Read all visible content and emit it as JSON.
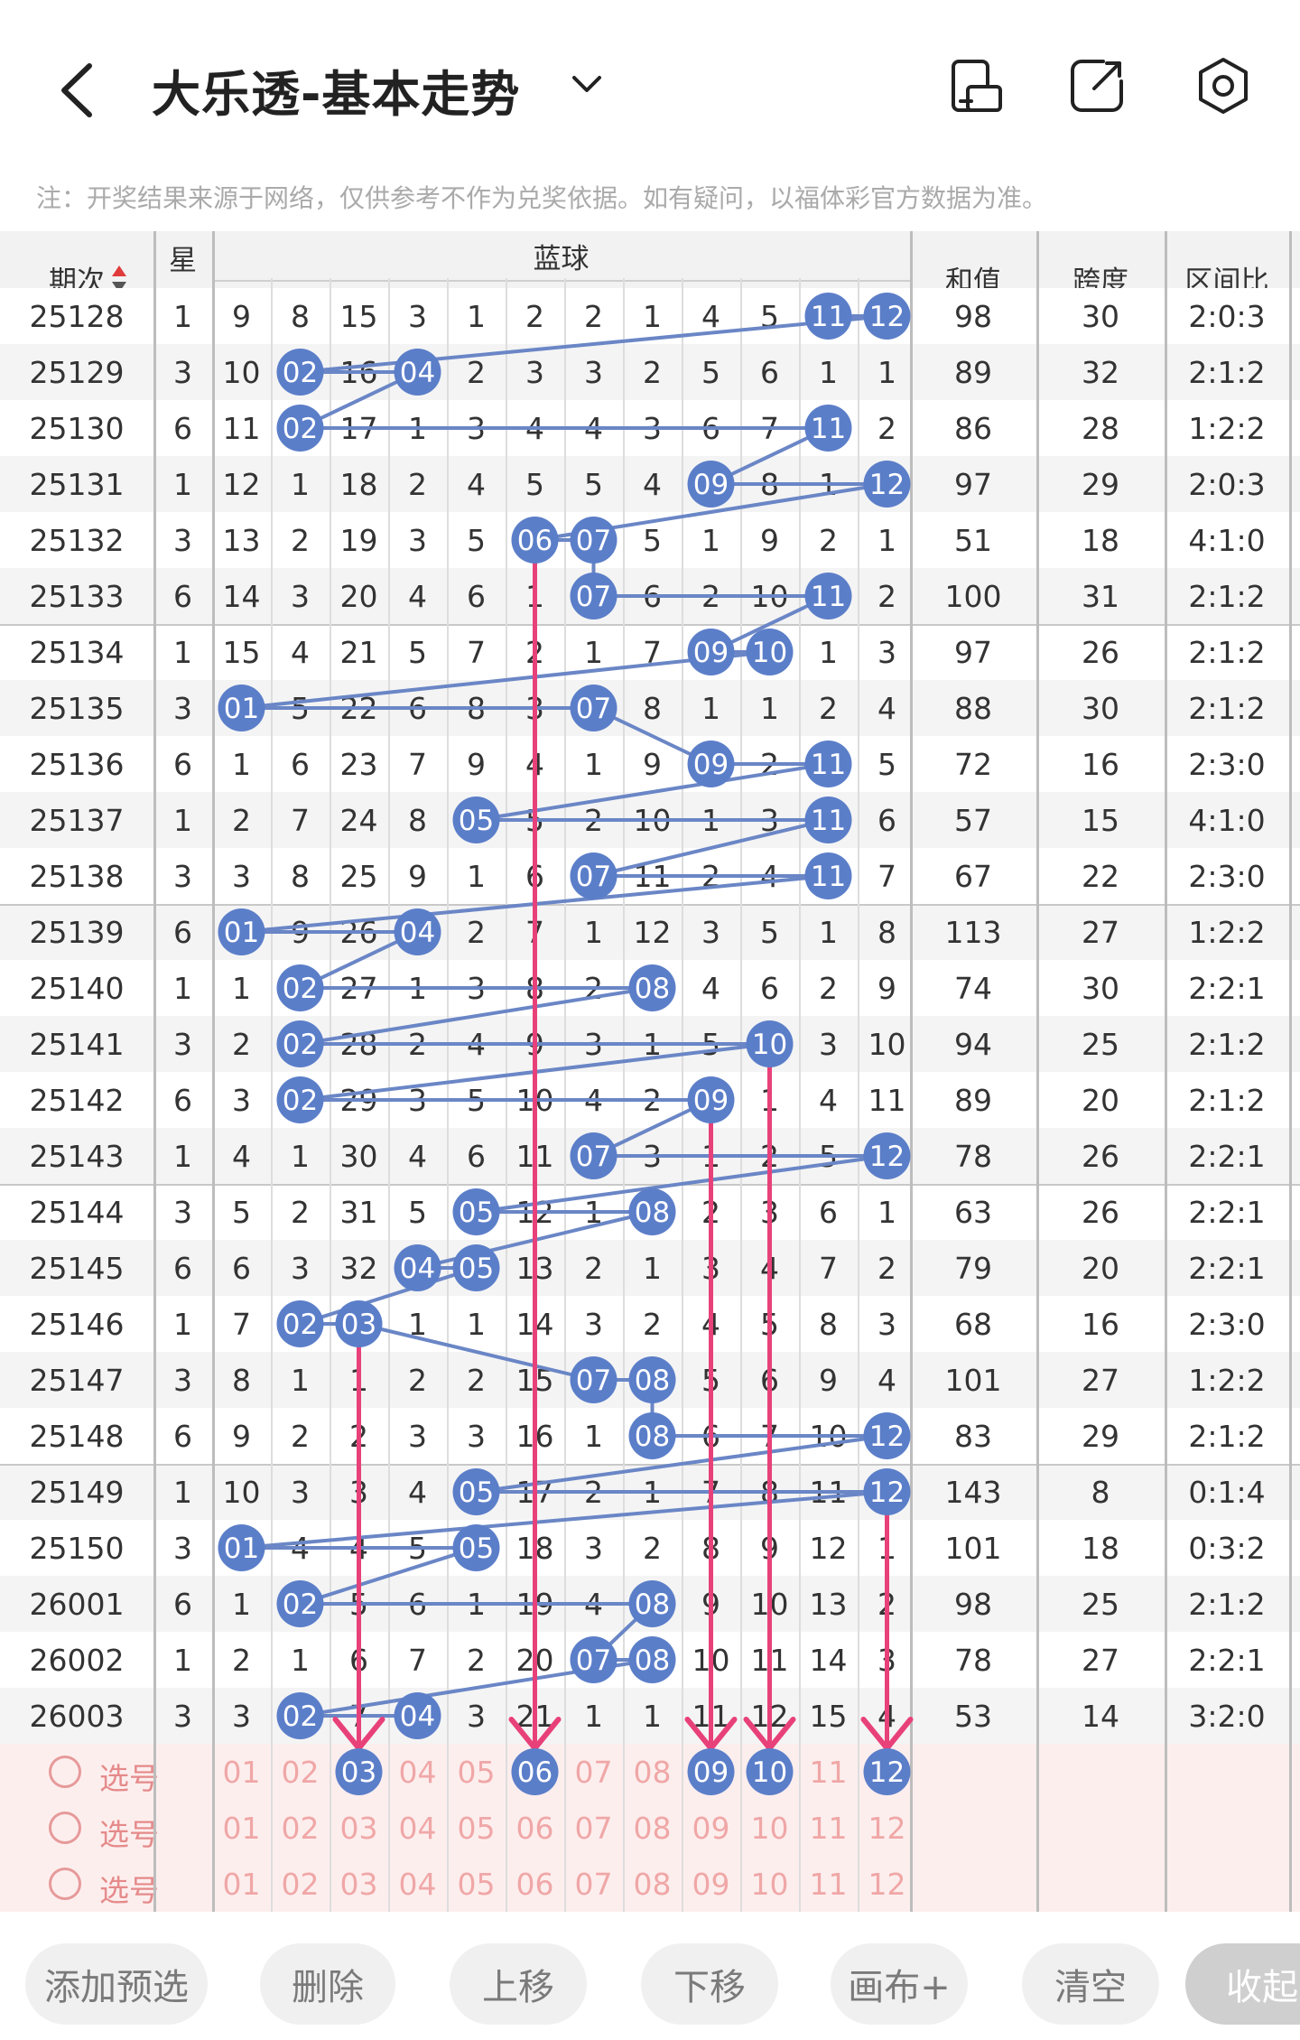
{
  "header": {
    "title": "大乐透-基本走势",
    "notice": "注：开奖结果来源于网络，仅供参考不作为兑奖依据。如有疑问，以福体彩官方数据为准。"
  },
  "table": {
    "col_issue": "期次",
    "col_week": [
      "星",
      "期"
    ],
    "col_blue": "蓝球",
    "col_sum": "和值",
    "col_span": "跨度",
    "col_zone": "区间比",
    "blue_numbers": [
      "01",
      "02",
      "03",
      "04",
      "05",
      "06",
      "07",
      "08",
      "09",
      "10",
      "11",
      "12"
    ],
    "partial_row": {
      "issue": "25128",
      "week": "1",
      "blue": [
        "9",
        "8",
        "15",
        "3",
        "1",
        "2",
        "2",
        "1",
        "4",
        "5",
        "11",
        "12"
      ],
      "balls": [
        11,
        12
      ],
      "sum": "98",
      "span": "30",
      "zone": "2:0:3"
    },
    "rows": [
      {
        "issue": "25129",
        "week": "3",
        "blue": [
          "10",
          "02",
          "16",
          "04",
          "2",
          "3",
          "3",
          "2",
          "5",
          "6",
          "1",
          "1"
        ],
        "balls": [
          2,
          4
        ],
        "sum": "89",
        "span": "32",
        "zone": "2:1:2"
      },
      {
        "issue": "25130",
        "week": "6",
        "blue": [
          "11",
          "02",
          "17",
          "1",
          "3",
          "4",
          "4",
          "3",
          "6",
          "7",
          "11",
          "2"
        ],
        "balls": [
          2,
          11
        ],
        "sum": "86",
        "span": "28",
        "zone": "1:2:2"
      },
      {
        "issue": "25131",
        "week": "1",
        "blue": [
          "12",
          "1",
          "18",
          "2",
          "4",
          "5",
          "5",
          "4",
          "09",
          "8",
          "1",
          "12"
        ],
        "balls": [
          9,
          12
        ],
        "sum": "97",
        "span": "29",
        "zone": "2:0:3"
      },
      {
        "issue": "25132",
        "week": "3",
        "blue": [
          "13",
          "2",
          "19",
          "3",
          "5",
          "06",
          "07",
          "5",
          "1",
          "9",
          "2",
          "1"
        ],
        "balls": [
          6,
          7
        ],
        "sum": "51",
        "span": "18",
        "zone": "4:1:0"
      },
      {
        "issue": "25133",
        "week": "6",
        "blue": [
          "14",
          "3",
          "20",
          "4",
          "6",
          "1",
          "07",
          "6",
          "2",
          "10",
          "11",
          "2"
        ],
        "balls": [
          7,
          11
        ],
        "sum": "100",
        "span": "31",
        "zone": "2:1:2"
      },
      {
        "issue": "25134",
        "week": "1",
        "blue": [
          "15",
          "4",
          "21",
          "5",
          "7",
          "2",
          "1",
          "7",
          "09",
          "10",
          "1",
          "3"
        ],
        "balls": [
          9,
          10
        ],
        "sum": "97",
        "span": "26",
        "zone": "2:1:2"
      },
      {
        "issue": "25135",
        "week": "3",
        "blue": [
          "01",
          "5",
          "22",
          "6",
          "8",
          "3",
          "07",
          "8",
          "1",
          "1",
          "2",
          "4"
        ],
        "balls": [
          1,
          7
        ],
        "sum": "88",
        "span": "30",
        "zone": "2:1:2"
      },
      {
        "issue": "25136",
        "week": "6",
        "blue": [
          "1",
          "6",
          "23",
          "7",
          "9",
          "4",
          "1",
          "9",
          "09",
          "2",
          "11",
          "5"
        ],
        "balls": [
          9,
          11
        ],
        "sum": "72",
        "span": "16",
        "zone": "2:3:0"
      },
      {
        "issue": "25137",
        "week": "1",
        "blue": [
          "2",
          "7",
          "24",
          "8",
          "05",
          "5",
          "2",
          "10",
          "1",
          "3",
          "11",
          "6"
        ],
        "balls": [
          5,
          11
        ],
        "sum": "57",
        "span": "15",
        "zone": "4:1:0"
      },
      {
        "issue": "25138",
        "week": "3",
        "blue": [
          "3",
          "8",
          "25",
          "9",
          "1",
          "6",
          "07",
          "11",
          "2",
          "4",
          "11",
          "7"
        ],
        "balls": [
          7,
          11
        ],
        "sum": "67",
        "span": "22",
        "zone": "2:3:0"
      },
      {
        "issue": "25139",
        "week": "6",
        "blue": [
          "01",
          "9",
          "26",
          "04",
          "2",
          "7",
          "1",
          "12",
          "3",
          "5",
          "1",
          "8"
        ],
        "balls": [
          1,
          4
        ],
        "sum": "113",
        "span": "27",
        "zone": "1:2:2"
      },
      {
        "issue": "25140",
        "week": "1",
        "blue": [
          "1",
          "02",
          "27",
          "1",
          "3",
          "8",
          "2",
          "08",
          "4",
          "6",
          "2",
          "9"
        ],
        "balls": [
          2,
          8
        ],
        "sum": "74",
        "span": "30",
        "zone": "2:2:1"
      },
      {
        "issue": "25141",
        "week": "3",
        "blue": [
          "2",
          "02",
          "28",
          "2",
          "4",
          "9",
          "3",
          "1",
          "5",
          "10",
          "3",
          "10"
        ],
        "balls": [
          2,
          10
        ],
        "sum": "94",
        "span": "25",
        "zone": "2:1:2"
      },
      {
        "issue": "25142",
        "week": "6",
        "blue": [
          "3",
          "02",
          "29",
          "3",
          "5",
          "10",
          "4",
          "2",
          "09",
          "1",
          "4",
          "11"
        ],
        "balls": [
          2,
          9
        ],
        "sum": "89",
        "span": "20",
        "zone": "2:1:2"
      },
      {
        "issue": "25143",
        "week": "1",
        "blue": [
          "4",
          "1",
          "30",
          "4",
          "6",
          "11",
          "07",
          "3",
          "1",
          "2",
          "5",
          "12"
        ],
        "balls": [
          7,
          12
        ],
        "sum": "78",
        "span": "26",
        "zone": "2:2:1"
      },
      {
        "issue": "25144",
        "week": "3",
        "blue": [
          "5",
          "2",
          "31",
          "5",
          "05",
          "12",
          "1",
          "08",
          "2",
          "3",
          "6",
          "1"
        ],
        "balls": [
          5,
          8
        ],
        "sum": "63",
        "span": "26",
        "zone": "2:2:1"
      },
      {
        "issue": "25145",
        "week": "6",
        "blue": [
          "6",
          "3",
          "32",
          "04",
          "05",
          "13",
          "2",
          "1",
          "3",
          "4",
          "7",
          "2"
        ],
        "balls": [
          4,
          5
        ],
        "sum": "79",
        "span": "20",
        "zone": "2:2:1"
      },
      {
        "issue": "25146",
        "week": "1",
        "blue": [
          "7",
          "02",
          "03",
          "1",
          "1",
          "14",
          "3",
          "2",
          "4",
          "5",
          "8",
          "3"
        ],
        "balls": [
          2,
          3
        ],
        "sum": "68",
        "span": "16",
        "zone": "2:3:0"
      },
      {
        "issue": "25147",
        "week": "3",
        "blue": [
          "8",
          "1",
          "1",
          "2",
          "2",
          "15",
          "07",
          "08",
          "5",
          "6",
          "9",
          "4"
        ],
        "balls": [
          7,
          8
        ],
        "sum": "101",
        "span": "27",
        "zone": "1:2:2"
      },
      {
        "issue": "25148",
        "week": "6",
        "blue": [
          "9",
          "2",
          "2",
          "3",
          "3",
          "16",
          "1",
          "08",
          "6",
          "7",
          "10",
          "12"
        ],
        "balls": [
          8,
          12
        ],
        "sum": "83",
        "span": "29",
        "zone": "2:1:2"
      },
      {
        "issue": "25149",
        "week": "1",
        "blue": [
          "10",
          "3",
          "3",
          "4",
          "05",
          "17",
          "2",
          "1",
          "7",
          "8",
          "11",
          "12"
        ],
        "balls": [
          5,
          12
        ],
        "sum": "143",
        "span": "8",
        "zone": "0:1:4"
      },
      {
        "issue": "25150",
        "week": "3",
        "blue": [
          "01",
          "4",
          "4",
          "5",
          "05",
          "18",
          "3",
          "2",
          "8",
          "9",
          "12",
          "1"
        ],
        "balls": [
          1,
          5
        ],
        "sum": "101",
        "span": "18",
        "zone": "0:3:2"
      },
      {
        "issue": "26001",
        "week": "6",
        "blue": [
          "1",
          "02",
          "5",
          "6",
          "1",
          "19",
          "4",
          "08",
          "9",
          "10",
          "13",
          "2"
        ],
        "balls": [
          2,
          8
        ],
        "sum": "98",
        "span": "25",
        "zone": "2:1:2"
      },
      {
        "issue": "26002",
        "week": "1",
        "blue": [
          "2",
          "1",
          "6",
          "7",
          "2",
          "20",
          "07",
          "08",
          "10",
          "11",
          "14",
          "3"
        ],
        "balls": [
          7,
          8
        ],
        "sum": "78",
        "span": "27",
        "zone": "2:2:1"
      },
      {
        "issue": "26003",
        "week": "3",
        "blue": [
          "3",
          "02",
          "7",
          "04",
          "3",
          "21",
          "1",
          "1",
          "11",
          "12",
          "15",
          "4"
        ],
        "balls": [
          2,
          4
        ],
        "sum": "53",
        "span": "14",
        "zone": "3:2:0"
      }
    ],
    "pick_label": "选号",
    "picked": [
      3,
      6,
      9,
      10,
      12
    ]
  },
  "buttons": {
    "add": "添加预选",
    "delete": "删除",
    "up": "上移",
    "down": "下移",
    "canvas": "画布+",
    "clear": "清空",
    "collapse": "收起"
  },
  "colors": {
    "ball": "#5b7ec9",
    "line": "#6a86c6",
    "arrow": "#e8417a",
    "pick_bg": "#fdeeee",
    "pick_text": "#f0a7a7"
  },
  "icons": [
    "back-arrow-icon",
    "chevron-down-icon",
    "split-screen-icon",
    "share-icon",
    "settings-icon",
    "sort-icon",
    "radio-icon"
  ]
}
